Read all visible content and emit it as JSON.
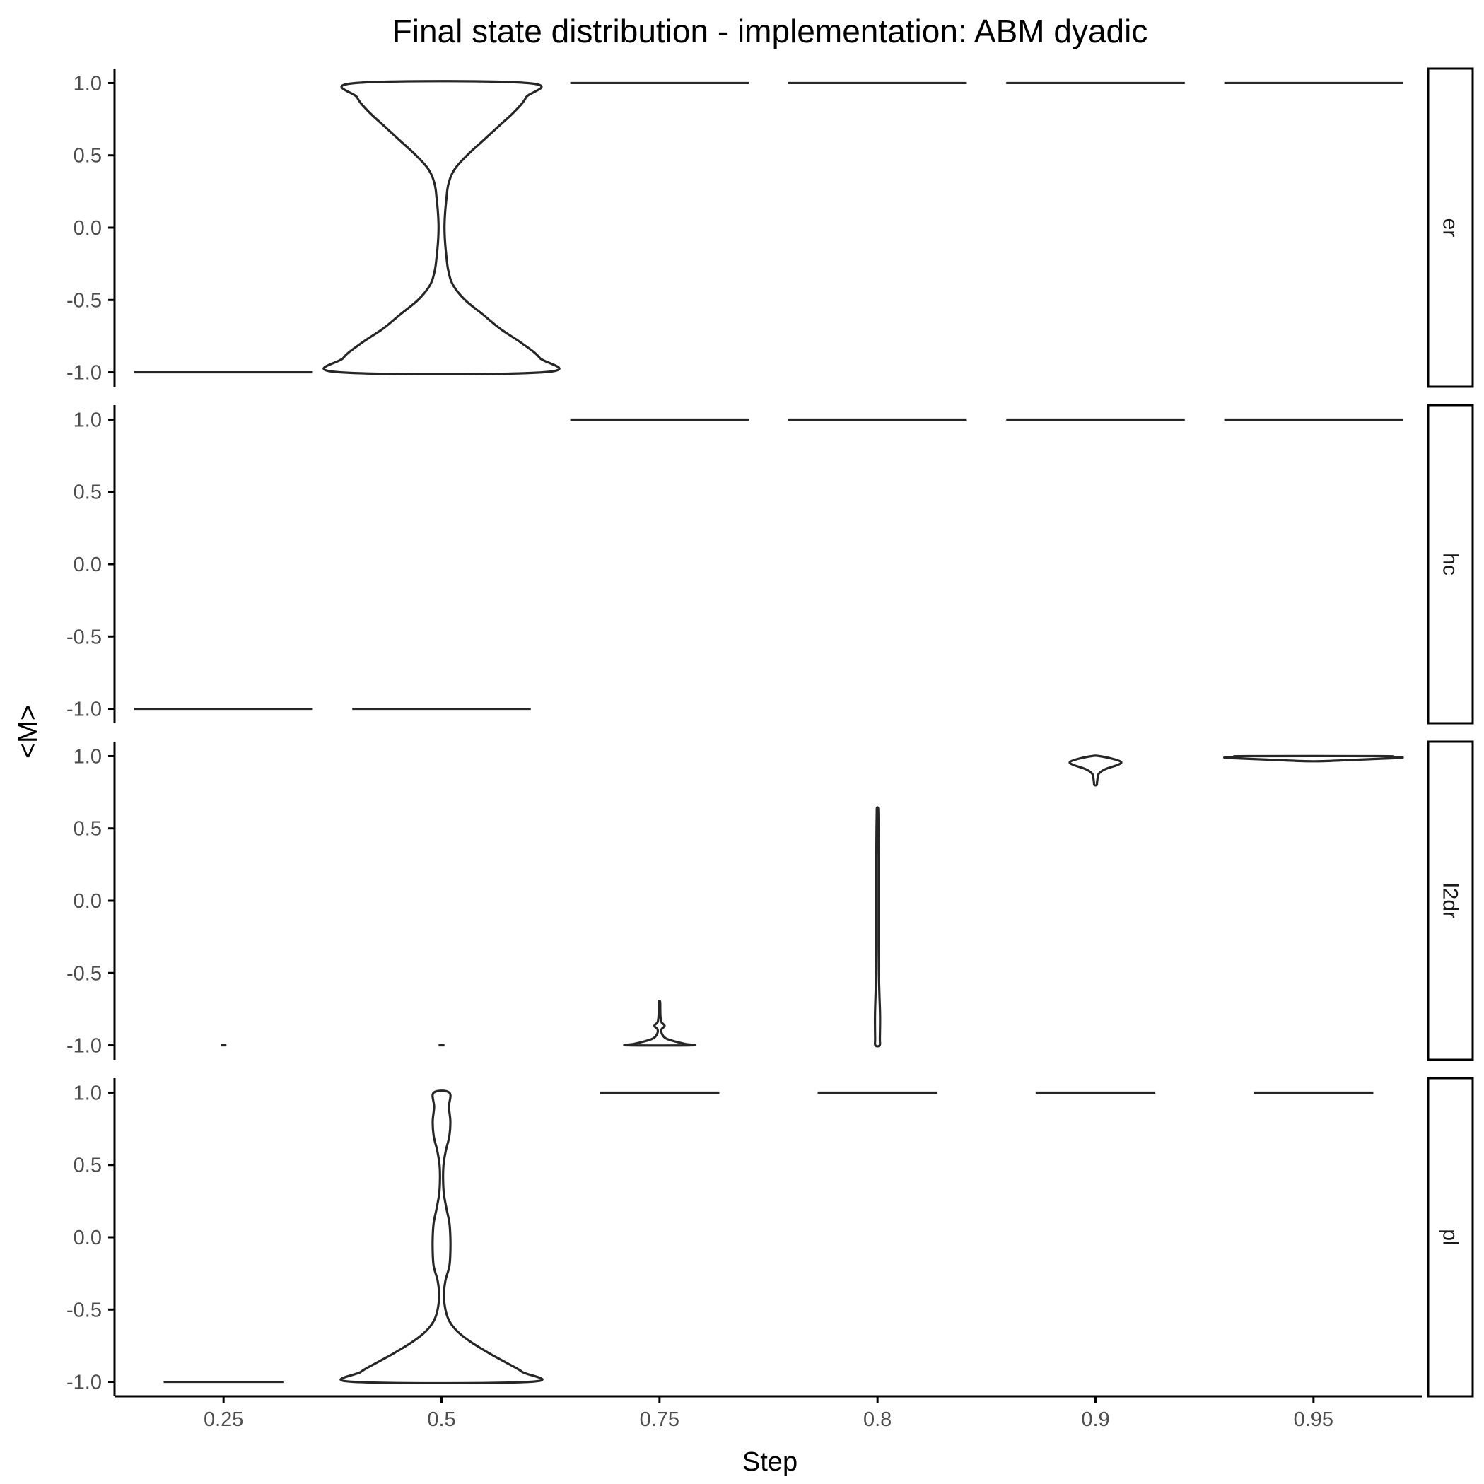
{
  "chart_data": {
    "type": "violin",
    "title": "Final state distribution - implementation: ABM dyadic",
    "xlabel": "Step",
    "ylabel": "<M>",
    "categories": [
      "0.25",
      "0.5",
      "0.75",
      "0.8",
      "0.9",
      "0.95"
    ],
    "y_ticks": [
      1.0,
      0.5,
      0.0,
      -0.5,
      -1.0
    ],
    "y_tick_labels": [
      "1.0",
      "0.5",
      "0.0",
      "-0.5",
      "-1.0"
    ],
    "ylim": [
      -1.1,
      1.1
    ],
    "facet_labels_position": "right",
    "panels": [
      {
        "label": "er",
        "violins": [
          {
            "category": "0.25",
            "degenerate": true,
            "value": -1.0,
            "relative_width": 0.91
          },
          {
            "category": "0.5",
            "degenerate": false,
            "relative_width": 1.0,
            "profile": [
              [
                -1.0,
                0.52
              ],
              [
                -0.9,
                0.5
              ],
              [
                -0.8,
                0.41
              ],
              [
                -0.7,
                0.3
              ],
              [
                -0.6,
                0.21
              ],
              [
                -0.5,
                0.12
              ],
              [
                -0.4,
                0.06
              ],
              [
                -0.3,
                0.035
              ],
              [
                -0.2,
                0.025
              ],
              [
                -0.1,
                0.018
              ],
              [
                0.0,
                0.015
              ],
              [
                0.1,
                0.018
              ],
              [
                0.2,
                0.025
              ],
              [
                0.3,
                0.035
              ],
              [
                0.4,
                0.065
              ],
              [
                0.5,
                0.13
              ],
              [
                0.6,
                0.21
              ],
              [
                0.7,
                0.29
              ],
              [
                0.8,
                0.37
              ],
              [
                0.9,
                0.43
              ],
              [
                1.0,
                0.44
              ]
            ]
          },
          {
            "category": "0.75",
            "degenerate": true,
            "value": 1.0,
            "relative_width": 0.91
          },
          {
            "category": "0.8",
            "degenerate": true,
            "value": 1.0,
            "relative_width": 0.91
          },
          {
            "category": "0.9",
            "degenerate": true,
            "value": 1.0,
            "relative_width": 0.91
          },
          {
            "category": "0.95",
            "degenerate": true,
            "value": 1.0,
            "relative_width": 0.91
          }
        ]
      },
      {
        "label": "hc",
        "violins": [
          {
            "category": "0.25",
            "degenerate": true,
            "value": -1.0,
            "relative_width": 0.91
          },
          {
            "category": "0.5",
            "degenerate": true,
            "value": -1.0,
            "relative_width": 0.91
          },
          {
            "category": "0.75",
            "degenerate": true,
            "value": 1.0,
            "relative_width": 0.91
          },
          {
            "category": "0.8",
            "degenerate": true,
            "value": 1.0,
            "relative_width": 0.91
          },
          {
            "category": "0.9",
            "degenerate": true,
            "value": 1.0,
            "relative_width": 0.91
          },
          {
            "category": "0.95",
            "degenerate": true,
            "value": 1.0,
            "relative_width": 0.91
          }
        ]
      },
      {
        "label": "l2dr",
        "violins": [
          {
            "category": "0.25",
            "degenerate": true,
            "value": -1.0,
            "relative_width": 0.03
          },
          {
            "category": "0.5",
            "degenerate": true,
            "value": -1.0,
            "relative_width": 0.03
          },
          {
            "category": "0.75",
            "degenerate": false,
            "relative_width": 1.0,
            "profile": [
              [
                -1.0,
                0.16
              ],
              [
                -0.99,
                0.13
              ],
              [
                -0.97,
                0.07
              ],
              [
                -0.95,
                0.03
              ],
              [
                -0.92,
                0.012
              ],
              [
                -0.89,
                0.01
              ],
              [
                -0.865,
                0.026
              ],
              [
                -0.84,
                0.01
              ],
              [
                -0.8,
                0.005
              ],
              [
                -0.75,
                0.004
              ],
              [
                -0.7,
                0.003
              ]
            ]
          },
          {
            "category": "0.8",
            "degenerate": false,
            "relative_width": 1.0,
            "profile": [
              [
                -1.0,
                0.011
              ],
              [
                -0.95,
                0.012
              ],
              [
                -0.8,
                0.013
              ],
              [
                -0.65,
                0.01
              ],
              [
                -0.5,
                0.007
              ],
              [
                -0.3,
                0.006
              ],
              [
                0.0,
                0.006
              ],
              [
                0.3,
                0.006
              ],
              [
                0.5,
                0.005
              ],
              [
                0.6,
                0.004
              ],
              [
                0.64,
                0.003
              ]
            ]
          },
          {
            "category": "0.9",
            "degenerate": false,
            "relative_width": 1.0,
            "profile": [
              [
                0.8,
                0.006
              ],
              [
                0.82,
                0.008
              ],
              [
                0.85,
                0.011
              ],
              [
                0.88,
                0.018
              ],
              [
                0.91,
                0.05
              ],
              [
                0.94,
                0.115
              ],
              [
                0.96,
                0.13
              ],
              [
                0.98,
                0.09
              ],
              [
                1.0,
                0.02
              ]
            ]
          },
          {
            "category": "0.95",
            "degenerate": false,
            "relative_width": 1.0,
            "profile": [
              [
                0.965,
                0.05
              ],
              [
                0.975,
                0.22
              ],
              [
                0.985,
                0.4
              ],
              [
                0.99,
                0.455
              ],
              [
                0.995,
                0.4
              ],
              [
                1.0,
                0.33
              ]
            ]
          }
        ]
      },
      {
        "label": "pl",
        "violins": [
          {
            "category": "0.25",
            "degenerate": true,
            "value": -1.0,
            "relative_width": 0.61
          },
          {
            "category": "0.5",
            "degenerate": false,
            "relative_width": 1.0,
            "profile": [
              [
                -1.0,
                0.45
              ],
              [
                -0.93,
                0.41
              ],
              [
                -0.86,
                0.32
              ],
              [
                -0.8,
                0.24
              ],
              [
                -0.72,
                0.145
              ],
              [
                -0.65,
                0.08
              ],
              [
                -0.58,
                0.04
              ],
              [
                -0.5,
                0.02
              ],
              [
                -0.4,
                0.012
              ],
              [
                -0.3,
                0.02
              ],
              [
                -0.2,
                0.04
              ],
              [
                -0.1,
                0.045
              ],
              [
                0.0,
                0.045
              ],
              [
                0.1,
                0.04
              ],
              [
                0.2,
                0.025
              ],
              [
                0.3,
                0.012
              ],
              [
                0.4,
                0.008
              ],
              [
                0.5,
                0.01
              ],
              [
                0.6,
                0.022
              ],
              [
                0.7,
                0.04
              ],
              [
                0.8,
                0.045
              ],
              [
                0.9,
                0.038
              ],
              [
                1.0,
                0.04
              ]
            ]
          },
          {
            "category": "0.75",
            "degenerate": true,
            "value": 1.0,
            "relative_width": 0.61
          },
          {
            "category": "0.8",
            "degenerate": true,
            "value": 1.0,
            "relative_width": 0.61
          },
          {
            "category": "0.9",
            "degenerate": true,
            "value": 1.0,
            "relative_width": 0.61
          },
          {
            "category": "0.95",
            "degenerate": true,
            "value": 1.0,
            "relative_width": 0.61
          }
        ]
      }
    ]
  }
}
